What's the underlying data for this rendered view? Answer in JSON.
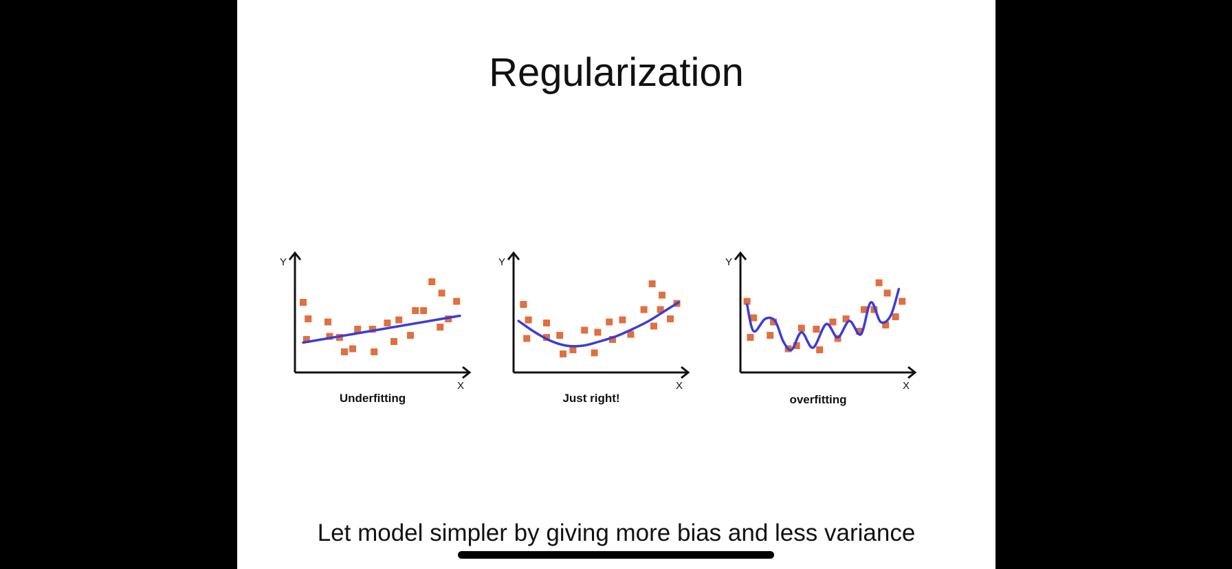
{
  "slide": {
    "title": "Regularization",
    "subtitle": "Let model simpler by giving more bias and less variance"
  },
  "colors": {
    "points": "#e07040",
    "curve": "#3c3cd8",
    "axis": "#111111",
    "background": "#ffffff",
    "letterbox": "#000000"
  },
  "chart_data": [
    {
      "type": "scatter",
      "title": "Underfitting",
      "xlabel": "X",
      "ylabel": "Y",
      "xlim": [
        0,
        10
      ],
      "ylim": [
        0,
        10
      ],
      "points": [
        [
          0.5,
          6.8
        ],
        [
          0.8,
          5.2
        ],
        [
          0.7,
          3.2
        ],
        [
          2.0,
          4.9
        ],
        [
          2.1,
          3.5
        ],
        [
          2.7,
          3.4
        ],
        [
          3.0,
          2.0
        ],
        [
          3.5,
          2.3
        ],
        [
          3.8,
          4.2
        ],
        [
          4.8,
          2.0
        ],
        [
          4.7,
          4.2
        ],
        [
          5.6,
          4.8
        ],
        [
          6.0,
          3.0
        ],
        [
          6.3,
          5.1
        ],
        [
          7.0,
          3.6
        ],
        [
          7.3,
          6.0
        ],
        [
          7.8,
          6.0
        ],
        [
          8.3,
          8.8
        ],
        [
          8.8,
          4.4
        ],
        [
          8.9,
          7.7
        ],
        [
          9.3,
          5.2
        ],
        [
          9.8,
          6.9
        ]
      ],
      "curve": [
        [
          0.5,
          2.9
        ],
        [
          10,
          5.5
        ]
      ]
    },
    {
      "type": "scatter",
      "title": "Just right!",
      "xlabel": "X",
      "ylabel": "Y",
      "xlim": [
        0,
        10
      ],
      "ylim": [
        0,
        10
      ],
      "points": [
        [
          0.6,
          6.6
        ],
        [
          0.9,
          5.1
        ],
        [
          0.8,
          3.3
        ],
        [
          2.0,
          4.8
        ],
        [
          2.0,
          3.4
        ],
        [
          2.8,
          3.6
        ],
        [
          3.0,
          1.8
        ],
        [
          3.6,
          2.2
        ],
        [
          4.3,
          4.1
        ],
        [
          4.9,
          1.9
        ],
        [
          5.1,
          3.9
        ],
        [
          5.8,
          4.9
        ],
        [
          6.0,
          3.2
        ],
        [
          6.6,
          5.1
        ],
        [
          7.1,
          3.7
        ],
        [
          7.9,
          6.1
        ],
        [
          8.4,
          8.6
        ],
        [
          8.5,
          4.5
        ],
        [
          8.9,
          6.1
        ],
        [
          9.0,
          7.5
        ],
        [
          9.5,
          5.2
        ],
        [
          9.9,
          6.7
        ]
      ],
      "curve": [
        [
          0.3,
          5.0
        ],
        [
          1.2,
          4.0
        ],
        [
          2.2,
          3.1
        ],
        [
          3.2,
          2.6
        ],
        [
          4.2,
          2.6
        ],
        [
          5.2,
          3.0
        ],
        [
          6.2,
          3.5
        ],
        [
          7.2,
          4.2
        ],
        [
          8.2,
          5.0
        ],
        [
          9.2,
          6.0
        ],
        [
          10,
          6.8
        ]
      ]
    },
    {
      "type": "scatter",
      "title": "overfitting",
      "xlabel": "X",
      "ylabel": "Y",
      "xlim": [
        0,
        10
      ],
      "ylim": [
        0,
        10
      ],
      "points": [
        [
          0.4,
          6.9
        ],
        [
          0.8,
          5.3
        ],
        [
          0.6,
          3.4
        ],
        [
          2.0,
          4.9
        ],
        [
          1.8,
          3.6
        ],
        [
          2.9,
          2.3
        ],
        [
          3.4,
          2.6
        ],
        [
          3.7,
          4.3
        ],
        [
          4.6,
          4.2
        ],
        [
          4.8,
          2.2
        ],
        [
          5.6,
          4.9
        ],
        [
          5.9,
          3.3
        ],
        [
          6.4,
          5.2
        ],
        [
          7.2,
          4.0
        ],
        [
          7.5,
          6.1
        ],
        [
          8.1,
          6.1
        ],
        [
          8.4,
          8.7
        ],
        [
          8.8,
          4.6
        ],
        [
          8.9,
          7.7
        ],
        [
          9.4,
          5.4
        ],
        [
          9.8,
          6.9
        ]
      ],
      "curve": [
        [
          0.4,
          6.6
        ],
        [
          0.8,
          4.0
        ],
        [
          1.5,
          5.2
        ],
        [
          2.1,
          5.0
        ],
        [
          2.6,
          3.0
        ],
        [
          3.1,
          2.2
        ],
        [
          3.7,
          3.9
        ],
        [
          4.4,
          2.4
        ],
        [
          5.2,
          4.7
        ],
        [
          5.9,
          3.4
        ],
        [
          6.6,
          5.0
        ],
        [
          7.3,
          3.7
        ],
        [
          7.9,
          6.8
        ],
        [
          8.5,
          4.9
        ],
        [
          9.1,
          5.5
        ],
        [
          9.6,
          8.1
        ]
      ]
    }
  ]
}
